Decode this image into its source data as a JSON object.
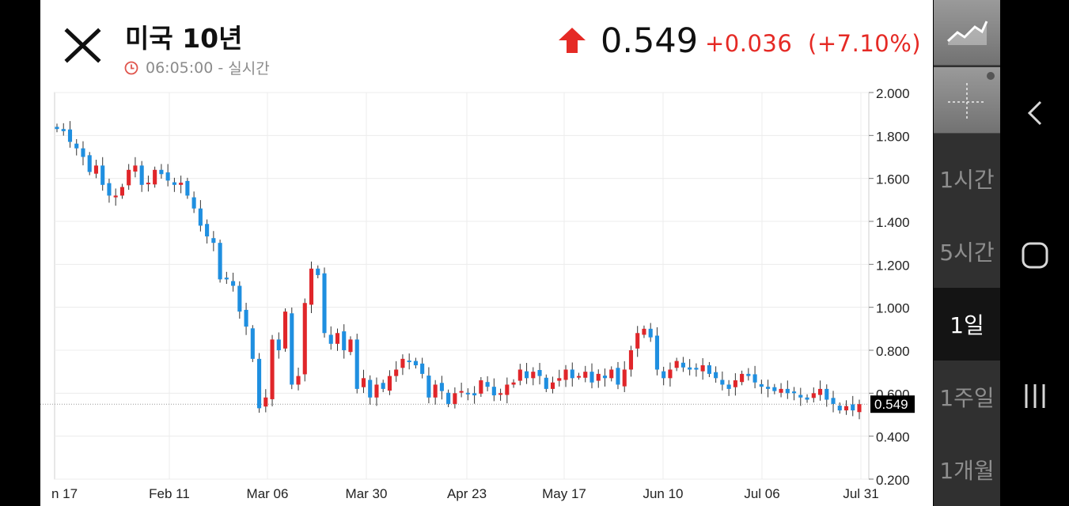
{
  "header": {
    "title": "미국 10년",
    "time": "06:05:00",
    "mode": "실시간",
    "price": "0.549",
    "change": "+0.036",
    "change_pct": "(+7.10%)"
  },
  "colors": {
    "up": "#e52a25",
    "down": "#1e90e6",
    "accent_up": "#e52a25"
  },
  "rail": {
    "intervals": [
      {
        "label": "1시간",
        "active": false
      },
      {
        "label": "5시간",
        "active": false
      },
      {
        "label": "1일",
        "active": true
      },
      {
        "label": "1주일",
        "active": false
      },
      {
        "label": "1개월",
        "active": false
      }
    ]
  },
  "chart_data": {
    "type": "candlestick",
    "y_ticks": [
      "2.000",
      "1.800",
      "1.600",
      "1.400",
      "1.200",
      "1.000",
      "0.800",
      "0.600",
      "0.400",
      "0.200"
    ],
    "x_ticks": [
      "n 17",
      "Feb 11",
      "Mar 06",
      "Mar 30",
      "Apr 23",
      "May 17",
      "Jun 10",
      "Jul 06",
      "Jul 31"
    ],
    "last_value": "0.549",
    "ylim": [
      0.18,
      2.02
    ],
    "grid": true,
    "closes": [
      1.83,
      1.82,
      1.77,
      1.74,
      1.7,
      1.63,
      1.66,
      1.57,
      1.52,
      1.52,
      1.56,
      1.64,
      1.66,
      1.57,
      1.58,
      1.64,
      1.62,
      1.59,
      1.57,
      1.58,
      1.52,
      1.46,
      1.38,
      1.33,
      1.3,
      1.13,
      1.13,
      1.1,
      0.98,
      0.91,
      0.76,
      0.53,
      0.58,
      0.85,
      0.8,
      0.98,
      0.64,
      0.68,
      1.02,
      1.18,
      1.15,
      0.88,
      0.83,
      0.88,
      0.8,
      0.85,
      0.62,
      0.67,
      0.58,
      0.64,
      0.62,
      0.68,
      0.71,
      0.76,
      0.75,
      0.73,
      0.69,
      0.58,
      0.64,
      0.61,
      0.55,
      0.6,
      0.61,
      0.6,
      0.59,
      0.66,
      0.63,
      0.59,
      0.6,
      0.64,
      0.65,
      0.71,
      0.67,
      0.7,
      0.68,
      0.62,
      0.65,
      0.67,
      0.71,
      0.67,
      0.68,
      0.7,
      0.65,
      0.69,
      0.67,
      0.71,
      0.64,
      0.71,
      0.8,
      0.88,
      0.9,
      0.86,
      0.71,
      0.67,
      0.71,
      0.75,
      0.72,
      0.71,
      0.71,
      0.73,
      0.69,
      0.67,
      0.64,
      0.62,
      0.66,
      0.69,
      0.68,
      0.65,
      0.63,
      0.62,
      0.61,
      0.62,
      0.6,
      0.6,
      0.58,
      0.57,
      0.6,
      0.62,
      0.57,
      0.55,
      0.52,
      0.54,
      0.52,
      0.549
    ]
  }
}
